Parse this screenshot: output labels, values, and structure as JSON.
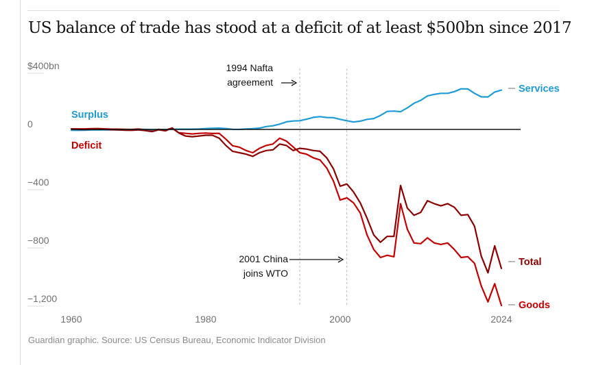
{
  "title": "US balance of trade has stood at a deficit of at least $500bn since 2017",
  "source": "Guardian graphic. Source: US Census Bureau, Economic Indicator Division",
  "colors": {
    "services": "#1d9bd7",
    "total": "#8b0000",
    "goods": "#c40000",
    "deficit_label": "#c40000",
    "zero_line": "#121212"
  },
  "chart_data": {
    "type": "line",
    "title": "US balance of trade has stood at a deficit of at least $500bn since 2017",
    "xlabel": "",
    "ylabel": "",
    "xlim": [
      1960,
      2024
    ],
    "ylim": [
      -1250,
      400
    ],
    "y_ticks": [
      {
        "value": 400,
        "label": "$400bn"
      },
      {
        "value": 0,
        "label": "0"
      },
      {
        "value": -400,
        "label": "−400"
      },
      {
        "value": -800,
        "label": "−800"
      },
      {
        "value": -1200,
        "label": "−1,200"
      }
    ],
    "x_ticks": [
      {
        "value": 1960,
        "label": "1960"
      },
      {
        "value": 1980,
        "label": "1980"
      },
      {
        "value": 2000,
        "label": "2000"
      },
      {
        "value": 2024,
        "label": "2024"
      }
    ],
    "region_labels": {
      "surplus": "Surplus",
      "deficit": "Deficit"
    },
    "annotations": [
      {
        "x": 1994,
        "lines": [
          "1994 Nafta",
          "agreement"
        ]
      },
      {
        "x": 2001,
        "lines": [
          "2001 China",
          "joins WTO"
        ]
      }
    ],
    "x": [
      1960,
      1961,
      1962,
      1963,
      1964,
      1965,
      1966,
      1967,
      1968,
      1969,
      1970,
      1971,
      1972,
      1973,
      1974,
      1975,
      1976,
      1977,
      1978,
      1979,
      1980,
      1981,
      1982,
      1983,
      1984,
      1985,
      1986,
      1987,
      1988,
      1989,
      1990,
      1991,
      1992,
      1993,
      1994,
      1995,
      1996,
      1997,
      1998,
      1999,
      2000,
      2001,
      2002,
      2003,
      2004,
      2005,
      2006,
      2007,
      2008,
      2009,
      2010,
      2011,
      2012,
      2013,
      2014,
      2015,
      2016,
      2017,
      2018,
      2019,
      2020,
      2021,
      2022,
      2023,
      2024
    ],
    "series": [
      {
        "name": "Services",
        "values": [
          -6,
          -6,
          -5,
          -4,
          -4,
          -3,
          -3,
          -3,
          -2,
          -2,
          -1,
          0,
          -2,
          -1,
          -1,
          1,
          2,
          2,
          2,
          3,
          6,
          8,
          9,
          6,
          1,
          0,
          3,
          5,
          9,
          20,
          25,
          36,
          52,
          58,
          60,
          70,
          83,
          88,
          82,
          81,
          69,
          60,
          51,
          57,
          69,
          75,
          96,
          124,
          126,
          122,
          148,
          180,
          200,
          230,
          241,
          248,
          248,
          260,
          279,
          278,
          248,
          224,
          223,
          257,
          270
        ]
      },
      {
        "name": "Total",
        "values": [
          3,
          0,
          -1,
          1,
          2,
          0,
          -2,
          -3,
          -5,
          -6,
          -3,
          -8,
          -15,
          -3,
          -10,
          10,
          -25,
          -45,
          -50,
          -45,
          -40,
          -40,
          -60,
          -110,
          -150,
          -160,
          -170,
          -185,
          -160,
          -145,
          -140,
          -100,
          -110,
          -145,
          -130,
          -135,
          -145,
          -150,
          -195,
          -270,
          -390,
          -375,
          -430,
          -505,
          -610,
          -725,
          -775,
          -735,
          -735,
          -385,
          -540,
          -590,
          -570,
          -490,
          -510,
          -525,
          -510,
          -535,
          -590,
          -585,
          -665,
          -870,
          -985,
          -800,
          -955
        ]
      },
      {
        "name": "Goods",
        "values": [
          4,
          4,
          4,
          5,
          6,
          4,
          2,
          2,
          1,
          0,
          3,
          -2,
          -6,
          1,
          -4,
          9,
          -23,
          -27,
          -31,
          -27,
          -25,
          -28,
          -27,
          -67,
          -112,
          -122,
          -145,
          -160,
          -130,
          -110,
          -100,
          -60,
          -80,
          -120,
          -160,
          -170,
          -195,
          -210,
          -265,
          -355,
          -485,
          -470,
          -505,
          -575,
          -725,
          -825,
          -880,
          -865,
          -875,
          -510,
          -685,
          -780,
          -785,
          -745,
          -780,
          -790,
          -780,
          -825,
          -880,
          -875,
          -920,
          -1075,
          -1185,
          -1060,
          -1210
        ]
      }
    ]
  }
}
